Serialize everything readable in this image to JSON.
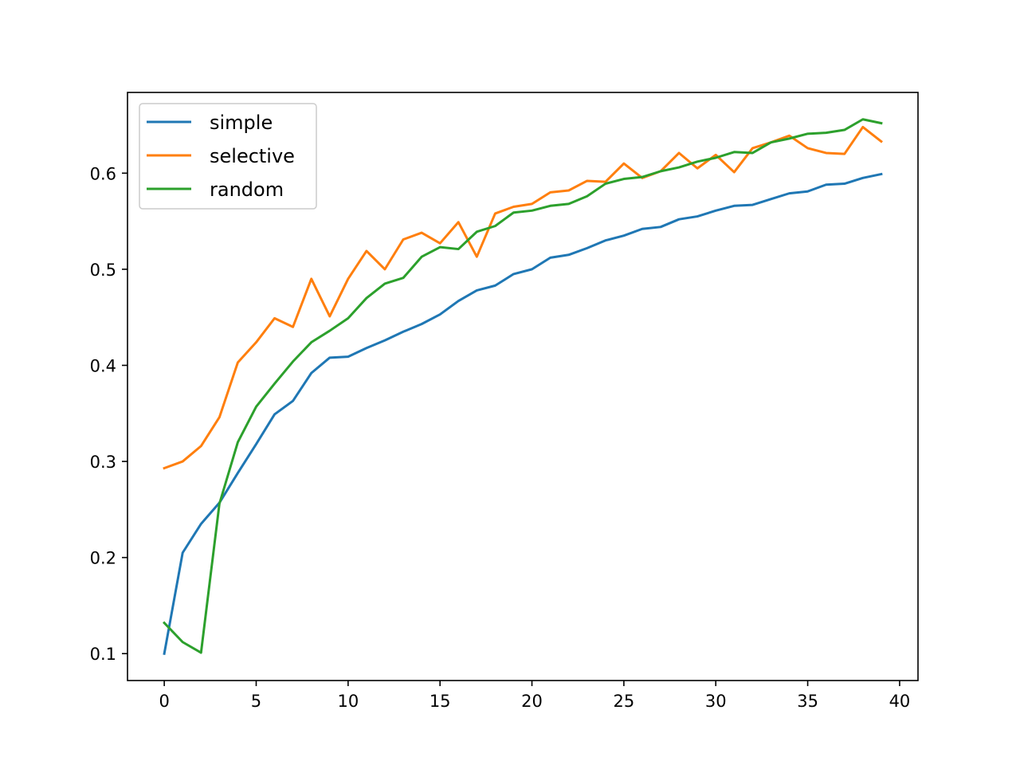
{
  "chart_data": {
    "type": "line",
    "title": "",
    "xlabel": "",
    "ylabel": "",
    "xlim": [
      -2,
      41
    ],
    "ylim": [
      0.072,
      0.684
    ],
    "xticks": [
      0,
      5,
      10,
      15,
      20,
      25,
      30,
      35,
      40
    ],
    "yticks": [
      0.1,
      0.2,
      0.3,
      0.4,
      0.5,
      0.6
    ],
    "ytick_labels": [
      "0.1",
      "0.2",
      "0.3",
      "0.4",
      "0.5",
      "0.6"
    ],
    "grid": false,
    "legend": "top-left",
    "x": [
      0,
      1,
      2,
      3,
      4,
      5,
      6,
      7,
      8,
      9,
      10,
      11,
      12,
      13,
      14,
      15,
      16,
      17,
      18,
      19,
      20,
      21,
      22,
      23,
      24,
      25,
      26,
      27,
      28,
      29,
      30,
      31,
      32,
      33,
      34,
      35,
      36,
      37,
      38,
      39
    ],
    "series": [
      {
        "name": "simple",
        "color": "#1f77b4",
        "values": [
          0.1,
          0.205,
          0.235,
          0.257,
          0.288,
          0.318,
          0.349,
          0.363,
          0.392,
          0.408,
          0.409,
          0.418,
          0.426,
          0.435,
          0.443,
          0.453,
          0.467,
          0.478,
          0.483,
          0.495,
          0.5,
          0.512,
          0.515,
          0.522,
          0.53,
          0.535,
          0.542,
          0.544,
          0.552,
          0.555,
          0.561,
          0.566,
          0.567,
          0.573,
          0.579,
          0.581,
          0.588,
          0.589,
          0.595,
          0.599
        ]
      },
      {
        "name": "selective",
        "color": "#ff7f0e",
        "values": [
          0.293,
          0.3,
          0.316,
          0.346,
          0.403,
          0.424,
          0.449,
          0.44,
          0.49,
          0.451,
          0.49,
          0.519,
          0.5,
          0.531,
          0.538,
          0.527,
          0.549,
          0.513,
          0.558,
          0.565,
          0.568,
          0.58,
          0.582,
          0.592,
          0.591,
          0.61,
          0.595,
          0.602,
          0.621,
          0.605,
          0.619,
          0.601,
          0.626,
          0.632,
          0.639,
          0.626,
          0.621,
          0.62,
          0.648,
          0.633
        ]
      },
      {
        "name": "random",
        "color": "#2ca02c",
        "values": [
          0.132,
          0.112,
          0.101,
          0.256,
          0.32,
          0.357,
          0.381,
          0.404,
          0.424,
          0.436,
          0.449,
          0.47,
          0.485,
          0.491,
          0.513,
          0.523,
          0.521,
          0.539,
          0.545,
          0.559,
          0.561,
          0.566,
          0.568,
          0.576,
          0.589,
          0.594,
          0.596,
          0.602,
          0.606,
          0.612,
          0.616,
          0.622,
          0.621,
          0.632,
          0.636,
          0.641,
          0.642,
          0.645,
          0.656,
          0.652
        ]
      }
    ]
  }
}
